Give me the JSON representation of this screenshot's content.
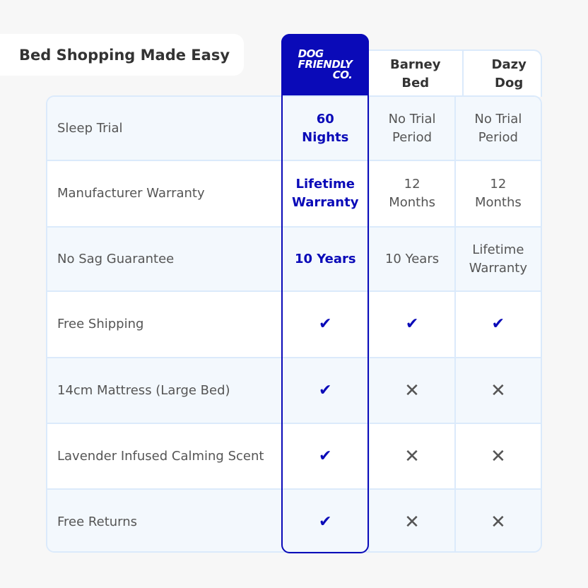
{
  "title": "Bed Shopping Made Easy",
  "brand": {
    "logo_lines": [
      "DOG",
      "FRIENDLY",
      "CO."
    ],
    "color": "#0a0ab8"
  },
  "competitors": [
    "Barney Bed",
    "Dazy Dog"
  ],
  "rows": [
    {
      "feature": "Sleep Trial",
      "brand": "60 Nights",
      "barney": "No Trial Period",
      "dazy": "No Trial Period"
    },
    {
      "feature": "Manufacturer Warranty",
      "brand": "Lifetime Warranty",
      "barney": "12 Months",
      "dazy": "12 Months"
    },
    {
      "feature": "No Sag Guarantee",
      "brand": "10 Years",
      "barney": "10 Years",
      "dazy": "Lifetime Warranty"
    },
    {
      "feature": "Free Shipping",
      "brand": "check",
      "barney": "check",
      "dazy": "check"
    },
    {
      "feature": "14cm Mattress (Large Bed)",
      "brand": "check",
      "barney": "cross",
      "dazy": "cross"
    },
    {
      "feature": "Lavender Infused Calming Scent",
      "brand": "check",
      "barney": "cross",
      "dazy": "cross"
    },
    {
      "feature": "Free Returns",
      "brand": "check",
      "barney": "cross",
      "dazy": "cross"
    }
  ]
}
